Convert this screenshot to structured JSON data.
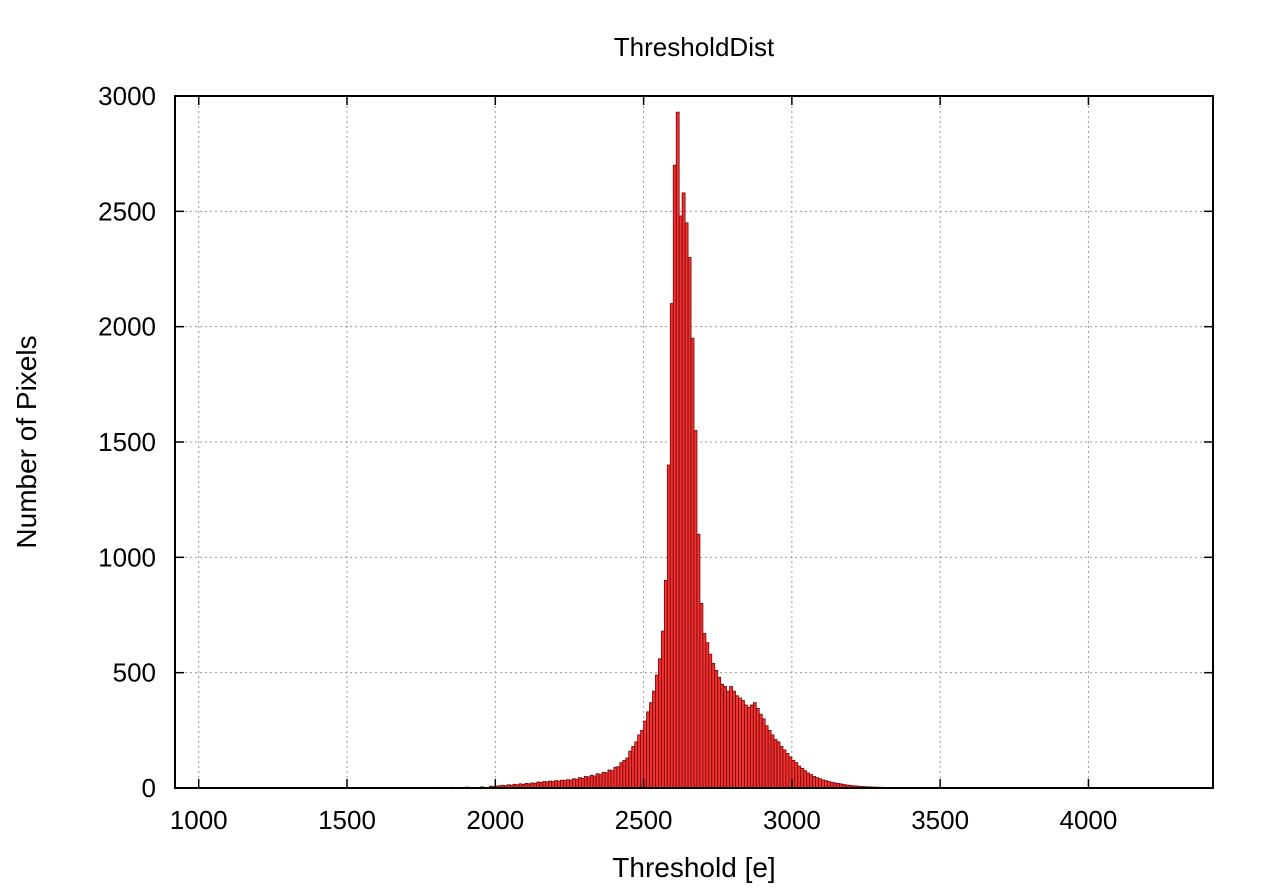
{
  "chart_data": {
    "type": "bar",
    "title": "ThresholdDist",
    "xlabel": "Threshold [e]",
    "ylabel": "Number of Pixels",
    "xlim": [
      920,
      4420
    ],
    "ylim": [
      0,
      3000
    ],
    "xticks": [
      "1000",
      "1500",
      "2000",
      "2500",
      "3000",
      "3500",
      "4000"
    ],
    "yticks": [
      "0",
      "500",
      "1000",
      "1500",
      "2000",
      "2500",
      "3000"
    ],
    "grid": true,
    "bar_color": "#ee3333",
    "bar_edge_color": "#7a0000",
    "bin_width": 10,
    "bins": [
      [
        1700,
        2
      ],
      [
        1750,
        2
      ],
      [
        1800,
        3
      ],
      [
        1850,
        3
      ],
      [
        1900,
        4
      ],
      [
        1950,
        5
      ],
      [
        1980,
        8
      ],
      [
        1990,
        6
      ],
      [
        2000,
        8
      ],
      [
        2010,
        10
      ],
      [
        2020,
        12
      ],
      [
        2030,
        10
      ],
      [
        2040,
        14
      ],
      [
        2050,
        12
      ],
      [
        2060,
        16
      ],
      [
        2070,
        14
      ],
      [
        2080,
        18
      ],
      [
        2090,
        16
      ],
      [
        2100,
        20
      ],
      [
        2110,
        18
      ],
      [
        2120,
        22
      ],
      [
        2130,
        20
      ],
      [
        2140,
        26
      ],
      [
        2150,
        24
      ],
      [
        2160,
        28
      ],
      [
        2170,
        26
      ],
      [
        2180,
        30
      ],
      [
        2190,
        28
      ],
      [
        2200,
        32
      ],
      [
        2210,
        30
      ],
      [
        2220,
        34
      ],
      [
        2230,
        32
      ],
      [
        2240,
        36
      ],
      [
        2250,
        34
      ],
      [
        2260,
        40
      ],
      [
        2270,
        38
      ],
      [
        2280,
        45
      ],
      [
        2290,
        42
      ],
      [
        2300,
        50
      ],
      [
        2310,
        48
      ],
      [
        2320,
        55
      ],
      [
        2330,
        52
      ],
      [
        2340,
        62
      ],
      [
        2350,
        58
      ],
      [
        2360,
        68
      ],
      [
        2370,
        66
      ],
      [
        2380,
        78
      ],
      [
        2390,
        75
      ],
      [
        2400,
        90
      ],
      [
        2410,
        92
      ],
      [
        2420,
        110
      ],
      [
        2430,
        120
      ],
      [
        2440,
        130
      ],
      [
        2450,
        160
      ],
      [
        2460,
        180
      ],
      [
        2470,
        200
      ],
      [
        2480,
        230
      ],
      [
        2490,
        250
      ],
      [
        2500,
        290
      ],
      [
        2510,
        330
      ],
      [
        2520,
        370
      ],
      [
        2530,
        420
      ],
      [
        2540,
        490
      ],
      [
        2550,
        560
      ],
      [
        2560,
        680
      ],
      [
        2570,
        900
      ],
      [
        2580,
        1400
      ],
      [
        2590,
        2100
      ],
      [
        2600,
        2700
      ],
      [
        2610,
        2930
      ],
      [
        2620,
        2480
      ],
      [
        2630,
        2580
      ],
      [
        2640,
        2450
      ],
      [
        2650,
        2300
      ],
      [
        2660,
        1950
      ],
      [
        2670,
        1550
      ],
      [
        2680,
        1100
      ],
      [
        2690,
        800
      ],
      [
        2700,
        670
      ],
      [
        2710,
        630
      ],
      [
        2720,
        580
      ],
      [
        2730,
        540
      ],
      [
        2740,
        510
      ],
      [
        2750,
        480
      ],
      [
        2760,
        450
      ],
      [
        2770,
        440
      ],
      [
        2780,
        420
      ],
      [
        2790,
        440
      ],
      [
        2800,
        420
      ],
      [
        2810,
        400
      ],
      [
        2820,
        390
      ],
      [
        2830,
        380
      ],
      [
        2840,
        360
      ],
      [
        2850,
        350
      ],
      [
        2860,
        360
      ],
      [
        2870,
        370
      ],
      [
        2880,
        345
      ],
      [
        2890,
        320
      ],
      [
        2900,
        300
      ],
      [
        2910,
        270
      ],
      [
        2920,
        250
      ],
      [
        2930,
        230
      ],
      [
        2940,
        210
      ],
      [
        2950,
        200
      ],
      [
        2960,
        180
      ],
      [
        2970,
        165
      ],
      [
        2980,
        150
      ],
      [
        2990,
        135
      ],
      [
        3000,
        120
      ],
      [
        3010,
        110
      ],
      [
        3020,
        95
      ],
      [
        3030,
        85
      ],
      [
        3040,
        75
      ],
      [
        3050,
        65
      ],
      [
        3060,
        58
      ],
      [
        3070,
        50
      ],
      [
        3080,
        45
      ],
      [
        3090,
        40
      ],
      [
        3100,
        35
      ],
      [
        3110,
        32
      ],
      [
        3120,
        28
      ],
      [
        3130,
        25
      ],
      [
        3140,
        22
      ],
      [
        3150,
        20
      ],
      [
        3160,
        18
      ],
      [
        3170,
        15
      ],
      [
        3180,
        13
      ],
      [
        3190,
        12
      ],
      [
        3200,
        10
      ],
      [
        3210,
        9
      ],
      [
        3220,
        8
      ],
      [
        3230,
        7
      ],
      [
        3240,
        6
      ],
      [
        3250,
        5
      ],
      [
        3260,
        5
      ],
      [
        3270,
        4
      ],
      [
        3280,
        4
      ],
      [
        3290,
        3
      ],
      [
        3300,
        3
      ],
      [
        3320,
        2
      ],
      [
        3350,
        2
      ],
      [
        3400,
        2
      ],
      [
        3450,
        1
      ],
      [
        3500,
        1
      ]
    ]
  }
}
